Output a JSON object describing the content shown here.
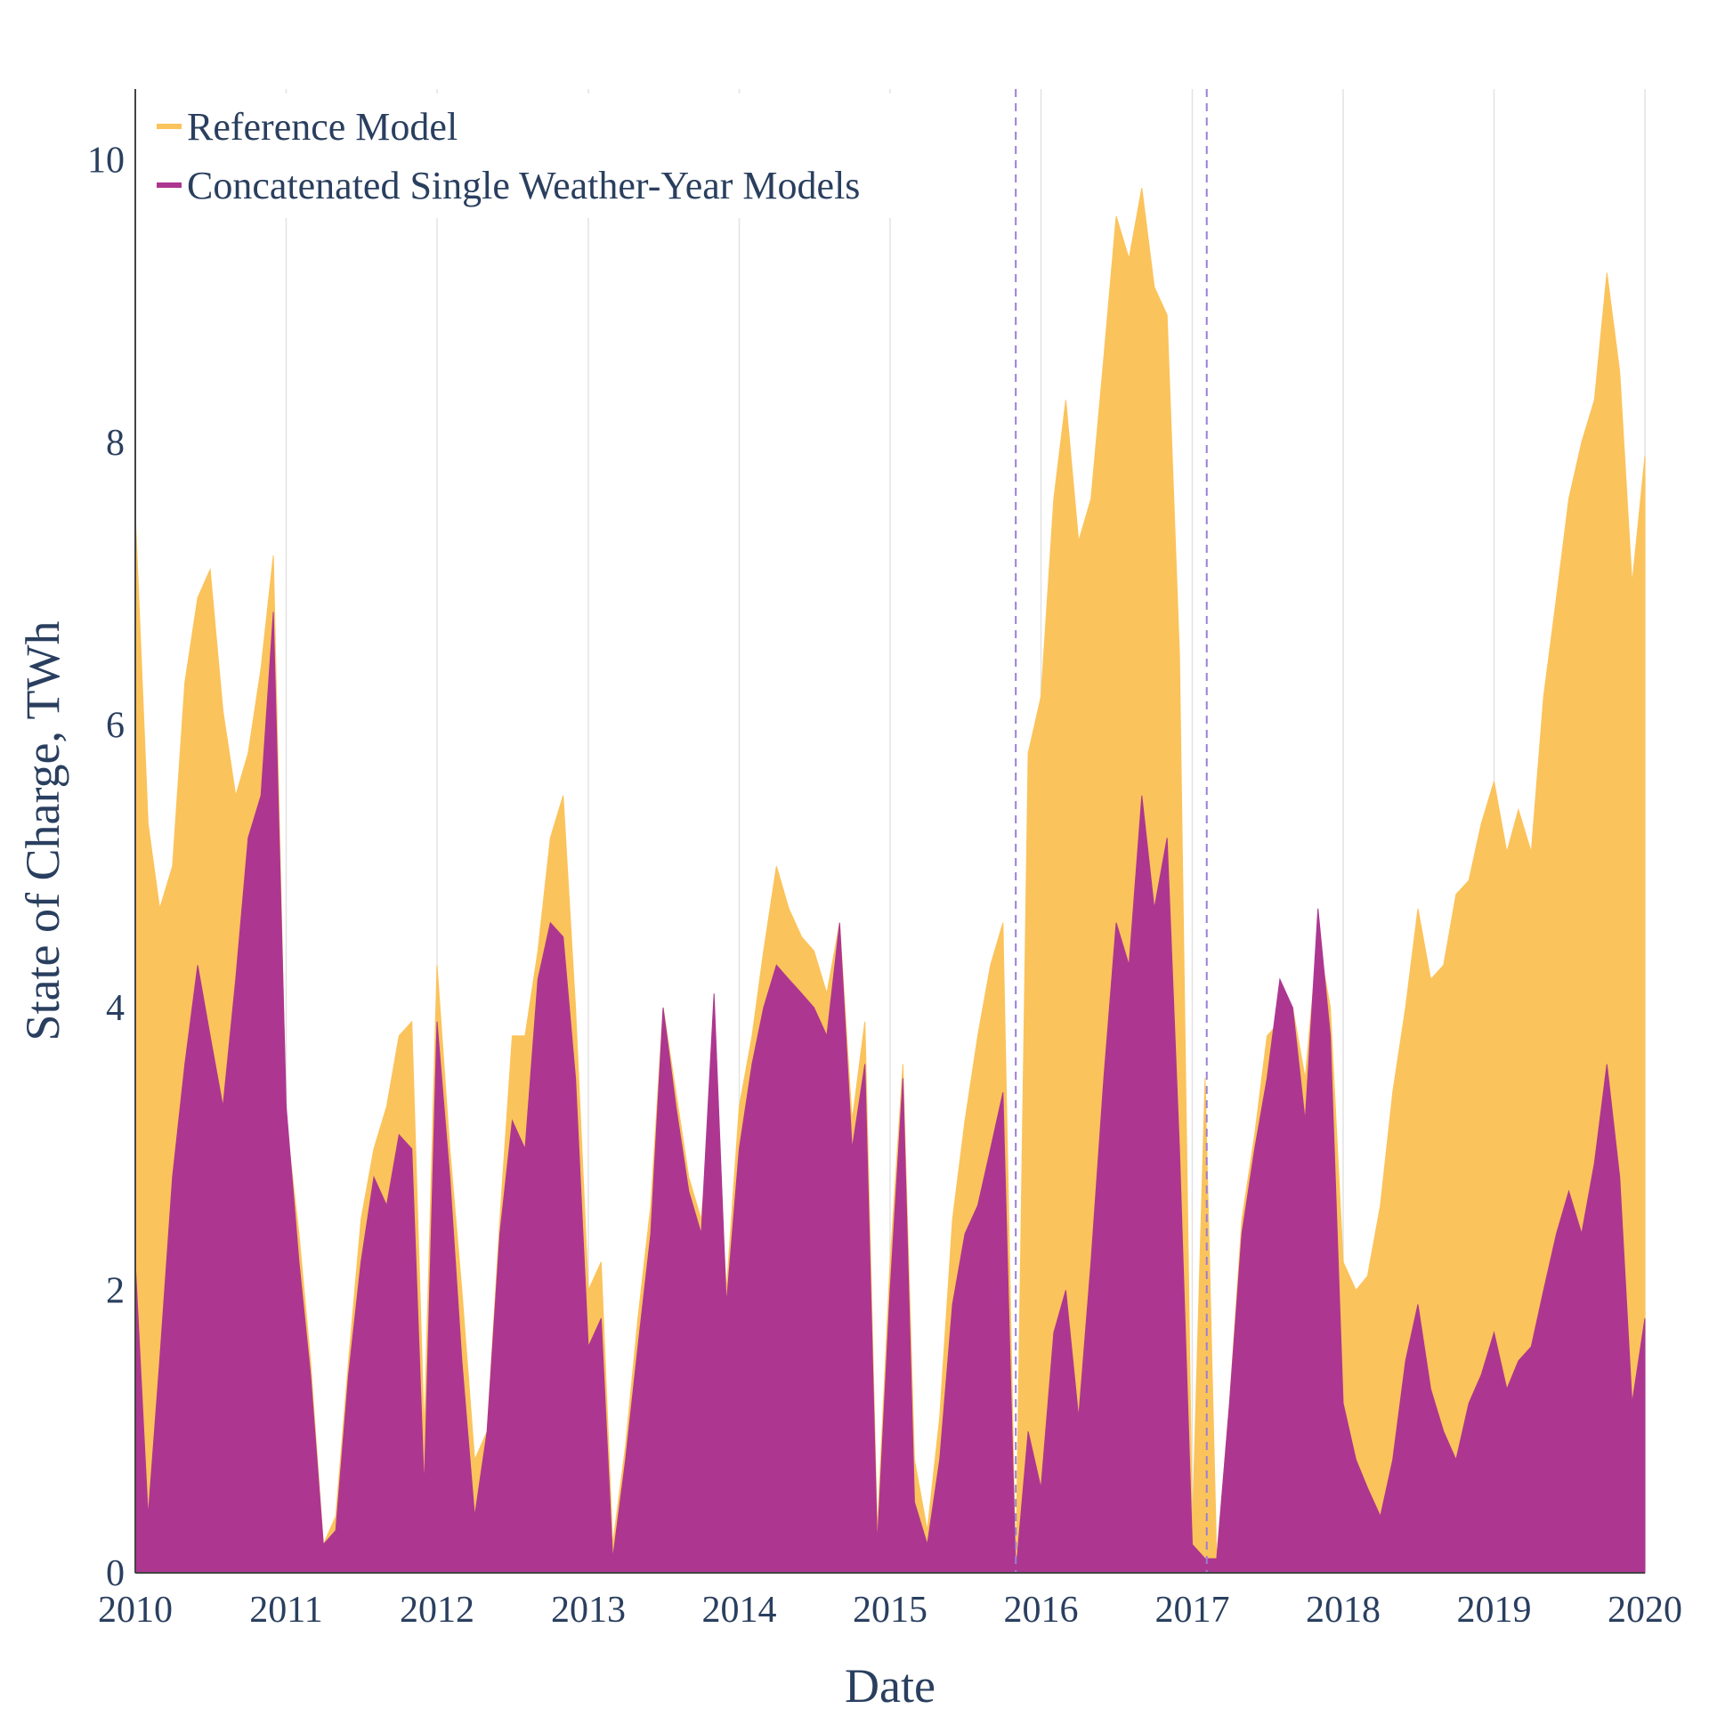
{
  "chart_data": {
    "type": "area",
    "xlabel": "Date",
    "ylabel": "State of Charge, TWh",
    "xlim": [
      "2010-01-01",
      "2020-01-01"
    ],
    "ylim": [
      0,
      10.5
    ],
    "x_ticks": [
      "2010",
      "2011",
      "2012",
      "2013",
      "2014",
      "2015",
      "2016",
      "2017",
      "2018",
      "2019",
      "2020"
    ],
    "y_ticks": [
      0,
      2,
      4,
      6,
      8,
      10
    ],
    "grid": "vertical",
    "legend": "top-left",
    "vertical_markers": [
      "2015-11-01",
      "2017-02-05"
    ],
    "marker_color": "#9b7fd6",
    "series": [
      {
        "name": "Reference Model",
        "color": "#fbc35b",
        "points": [
          [
            "2010-01-01",
            7.5
          ],
          [
            "2010-02-01",
            5.3
          ],
          [
            "2010-03-01",
            4.7
          ],
          [
            "2010-04-01",
            5.0
          ],
          [
            "2010-05-01",
            6.3
          ],
          [
            "2010-06-01",
            6.9
          ],
          [
            "2010-07-01",
            7.1
          ],
          [
            "2010-08-01",
            6.1
          ],
          [
            "2010-09-01",
            5.5
          ],
          [
            "2010-10-01",
            5.8
          ],
          [
            "2010-11-01",
            6.4
          ],
          [
            "2010-12-01",
            7.2
          ],
          [
            "2011-01-01",
            3.2
          ],
          [
            "2011-02-01",
            2.4
          ],
          [
            "2011-03-01",
            1.5
          ],
          [
            "2011-04-01",
            0.2
          ],
          [
            "2011-05-01",
            0.4
          ],
          [
            "2011-06-01",
            1.5
          ],
          [
            "2011-07-01",
            2.5
          ],
          [
            "2011-08-01",
            3.0
          ],
          [
            "2011-09-01",
            3.3
          ],
          [
            "2011-10-01",
            3.8
          ],
          [
            "2011-11-01",
            3.9
          ],
          [
            "2011-12-01",
            1.0
          ],
          [
            "2012-01-01",
            4.3
          ],
          [
            "2012-02-01",
            3.0
          ],
          [
            "2012-03-01",
            2.0
          ],
          [
            "2012-04-01",
            0.8
          ],
          [
            "2012-05-01",
            1.0
          ],
          [
            "2012-06-01",
            2.5
          ],
          [
            "2012-07-01",
            3.8
          ],
          [
            "2012-08-01",
            3.8
          ],
          [
            "2012-09-01",
            4.4
          ],
          [
            "2012-10-01",
            5.2
          ],
          [
            "2012-11-01",
            5.5
          ],
          [
            "2012-12-01",
            4.0
          ],
          [
            "2013-01-01",
            2.0
          ],
          [
            "2013-02-01",
            2.2
          ],
          [
            "2013-03-01",
            0.2
          ],
          [
            "2013-04-01",
            0.9
          ],
          [
            "2013-05-01",
            1.8
          ],
          [
            "2013-06-01",
            2.6
          ],
          [
            "2013-07-01",
            4.0
          ],
          [
            "2013-08-01",
            3.4
          ],
          [
            "2013-09-01",
            2.8
          ],
          [
            "2013-10-01",
            2.5
          ],
          [
            "2013-11-01",
            3.6
          ],
          [
            "2013-12-01",
            2.0
          ],
          [
            "2014-01-01",
            3.3
          ],
          [
            "2014-02-01",
            3.8
          ],
          [
            "2014-03-01",
            4.4
          ],
          [
            "2014-04-01",
            5.0
          ],
          [
            "2014-05-01",
            4.7
          ],
          [
            "2014-06-01",
            4.5
          ],
          [
            "2014-07-01",
            4.4
          ],
          [
            "2014-08-01",
            4.1
          ],
          [
            "2014-09-01",
            4.6
          ],
          [
            "2014-10-01",
            3.2
          ],
          [
            "2014-11-01",
            3.9
          ],
          [
            "2014-12-01",
            0.3
          ],
          [
            "2015-01-01",
            2.2
          ],
          [
            "2015-02-01",
            3.6
          ],
          [
            "2015-03-01",
            0.8
          ],
          [
            "2015-04-01",
            0.3
          ],
          [
            "2015-05-01",
            1.1
          ],
          [
            "2015-06-01",
            2.5
          ],
          [
            "2015-07-01",
            3.2
          ],
          [
            "2015-08-01",
            3.8
          ],
          [
            "2015-09-01",
            4.3
          ],
          [
            "2015-10-01",
            4.6
          ],
          [
            "2015-11-01",
            0.0
          ],
          [
            "2015-12-01",
            5.8
          ],
          [
            "2016-01-01",
            6.2
          ],
          [
            "2016-02-01",
            7.6
          ],
          [
            "2016-03-01",
            8.3
          ],
          [
            "2016-04-01",
            7.3
          ],
          [
            "2016-05-01",
            7.6
          ],
          [
            "2016-06-01",
            8.6
          ],
          [
            "2016-07-01",
            9.6
          ],
          [
            "2016-08-01",
            9.3
          ],
          [
            "2016-09-01",
            9.8
          ],
          [
            "2016-10-01",
            9.1
          ],
          [
            "2016-11-01",
            8.9
          ],
          [
            "2016-12-01",
            6.5
          ],
          [
            "2017-01-01",
            0.3
          ],
          [
            "2017-02-01",
            3.5
          ],
          [
            "2017-03-01",
            0.1
          ],
          [
            "2017-04-01",
            1.2
          ],
          [
            "2017-05-01",
            2.5
          ],
          [
            "2017-06-01",
            3.1
          ],
          [
            "2017-07-01",
            3.8
          ],
          [
            "2017-08-01",
            3.9
          ],
          [
            "2017-09-01",
            4.0
          ],
          [
            "2017-10-01",
            3.5
          ],
          [
            "2017-11-01",
            4.5
          ],
          [
            "2017-12-01",
            4.0
          ],
          [
            "2018-01-01",
            2.2
          ],
          [
            "2018-02-01",
            2.0
          ],
          [
            "2018-03-01",
            2.1
          ],
          [
            "2018-04-01",
            2.6
          ],
          [
            "2018-05-01",
            3.4
          ],
          [
            "2018-06-01",
            4.0
          ],
          [
            "2018-07-01",
            4.7
          ],
          [
            "2018-08-01",
            4.2
          ],
          [
            "2018-09-01",
            4.3
          ],
          [
            "2018-10-01",
            4.8
          ],
          [
            "2018-11-01",
            4.9
          ],
          [
            "2018-12-01",
            5.3
          ],
          [
            "2019-01-01",
            5.6
          ],
          [
            "2019-02-01",
            5.1
          ],
          [
            "2019-03-01",
            5.4
          ],
          [
            "2019-04-01",
            5.1
          ],
          [
            "2019-05-01",
            6.2
          ],
          [
            "2019-06-01",
            6.9
          ],
          [
            "2019-07-01",
            7.6
          ],
          [
            "2019-08-01",
            8.0
          ],
          [
            "2019-09-01",
            8.3
          ],
          [
            "2019-10-01",
            9.2
          ],
          [
            "2019-11-01",
            8.5
          ],
          [
            "2019-12-01",
            7.0
          ],
          [
            "2020-01-01",
            7.9
          ]
        ]
      },
      {
        "name": "Concatenated Single Weather-Year Models",
        "color": "#ad3790",
        "points": [
          [
            "2010-01-01",
            2.2
          ],
          [
            "2010-02-01",
            0.4
          ],
          [
            "2010-03-01",
            1.5
          ],
          [
            "2010-04-01",
            2.8
          ],
          [
            "2010-05-01",
            3.6
          ],
          [
            "2010-06-01",
            4.3
          ],
          [
            "2010-07-01",
            3.8
          ],
          [
            "2010-08-01",
            3.3
          ],
          [
            "2010-09-01",
            4.2
          ],
          [
            "2010-10-01",
            5.2
          ],
          [
            "2010-11-01",
            5.5
          ],
          [
            "2010-12-01",
            6.8
          ],
          [
            "2011-01-01",
            3.3
          ],
          [
            "2011-02-01",
            2.2
          ],
          [
            "2011-03-01",
            1.4
          ],
          [
            "2011-04-01",
            0.2
          ],
          [
            "2011-05-01",
            0.3
          ],
          [
            "2011-06-01",
            1.4
          ],
          [
            "2011-07-01",
            2.2
          ],
          [
            "2011-08-01",
            2.8
          ],
          [
            "2011-09-01",
            2.6
          ],
          [
            "2011-10-01",
            3.1
          ],
          [
            "2011-11-01",
            3.0
          ],
          [
            "2011-12-01",
            0.6
          ],
          [
            "2012-01-01",
            3.9
          ],
          [
            "2012-02-01",
            2.8
          ],
          [
            "2012-03-01",
            1.5
          ],
          [
            "2012-04-01",
            0.4
          ],
          [
            "2012-05-01",
            1.0
          ],
          [
            "2012-06-01",
            2.4
          ],
          [
            "2012-07-01",
            3.2
          ],
          [
            "2012-08-01",
            3.0
          ],
          [
            "2012-09-01",
            4.2
          ],
          [
            "2012-10-01",
            4.6
          ],
          [
            "2012-11-01",
            4.5
          ],
          [
            "2012-12-01",
            3.5
          ],
          [
            "2013-01-01",
            1.6
          ],
          [
            "2013-02-01",
            1.8
          ],
          [
            "2013-03-01",
            0.1
          ],
          [
            "2013-04-01",
            0.8
          ],
          [
            "2013-05-01",
            1.6
          ],
          [
            "2013-06-01",
            2.4
          ],
          [
            "2013-07-01",
            4.0
          ],
          [
            "2013-08-01",
            3.3
          ],
          [
            "2013-09-01",
            2.7
          ],
          [
            "2013-10-01",
            2.4
          ],
          [
            "2013-11-01",
            4.1
          ],
          [
            "2013-12-01",
            1.9
          ],
          [
            "2014-01-01",
            3.0
          ],
          [
            "2014-02-01",
            3.6
          ],
          [
            "2014-03-01",
            4.0
          ],
          [
            "2014-04-01",
            4.3
          ],
          [
            "2014-05-01",
            4.2
          ],
          [
            "2014-06-01",
            4.1
          ],
          [
            "2014-07-01",
            4.0
          ],
          [
            "2014-08-01",
            3.8
          ],
          [
            "2014-09-01",
            4.6
          ],
          [
            "2014-10-01",
            3.0
          ],
          [
            "2014-11-01",
            3.6
          ],
          [
            "2014-12-01",
            0.2
          ],
          [
            "2015-01-01",
            2.0
          ],
          [
            "2015-02-01",
            3.5
          ],
          [
            "2015-03-01",
            0.5
          ],
          [
            "2015-04-01",
            0.2
          ],
          [
            "2015-05-01",
            0.8
          ],
          [
            "2015-06-01",
            1.9
          ],
          [
            "2015-07-01",
            2.4
          ],
          [
            "2015-08-01",
            2.6
          ],
          [
            "2015-09-01",
            3.0
          ],
          [
            "2015-10-01",
            3.4
          ],
          [
            "2015-11-01",
            0.0
          ],
          [
            "2015-12-01",
            1.0
          ],
          [
            "2016-01-01",
            0.6
          ],
          [
            "2016-02-01",
            1.7
          ],
          [
            "2016-03-01",
            2.0
          ],
          [
            "2016-04-01",
            1.1
          ],
          [
            "2016-05-01",
            2.2
          ],
          [
            "2016-06-01",
            3.5
          ],
          [
            "2016-07-01",
            4.6
          ],
          [
            "2016-08-01",
            4.3
          ],
          [
            "2016-09-01",
            5.5
          ],
          [
            "2016-10-01",
            4.7
          ],
          [
            "2016-11-01",
            5.2
          ],
          [
            "2016-12-01",
            3.0
          ],
          [
            "2017-01-01",
            0.2
          ],
          [
            "2017-02-01",
            0.1
          ],
          [
            "2017-03-01",
            0.1
          ],
          [
            "2017-04-01",
            1.2
          ],
          [
            "2017-05-01",
            2.4
          ],
          [
            "2017-06-01",
            3.0
          ],
          [
            "2017-07-01",
            3.5
          ],
          [
            "2017-08-01",
            4.2
          ],
          [
            "2017-09-01",
            4.0
          ],
          [
            "2017-10-01",
            3.2
          ],
          [
            "2017-11-01",
            4.7
          ],
          [
            "2017-12-01",
            3.8
          ],
          [
            "2018-01-01",
            1.2
          ],
          [
            "2018-02-01",
            0.8
          ],
          [
            "2018-03-01",
            0.6
          ],
          [
            "2018-04-01",
            0.4
          ],
          [
            "2018-05-01",
            0.8
          ],
          [
            "2018-06-01",
            1.5
          ],
          [
            "2018-07-01",
            1.9
          ],
          [
            "2018-08-01",
            1.3
          ],
          [
            "2018-09-01",
            1.0
          ],
          [
            "2018-10-01",
            0.8
          ],
          [
            "2018-11-01",
            1.2
          ],
          [
            "2018-12-01",
            1.4
          ],
          [
            "2019-01-01",
            1.7
          ],
          [
            "2019-02-01",
            1.3
          ],
          [
            "2019-03-01",
            1.5
          ],
          [
            "2019-04-01",
            1.6
          ],
          [
            "2019-05-01",
            2.0
          ],
          [
            "2019-06-01",
            2.4
          ],
          [
            "2019-07-01",
            2.7
          ],
          [
            "2019-08-01",
            2.4
          ],
          [
            "2019-09-01",
            2.9
          ],
          [
            "2019-10-01",
            3.6
          ],
          [
            "2019-11-01",
            2.8
          ],
          [
            "2019-12-01",
            1.2
          ],
          [
            "2020-01-01",
            1.8
          ]
        ]
      }
    ]
  }
}
